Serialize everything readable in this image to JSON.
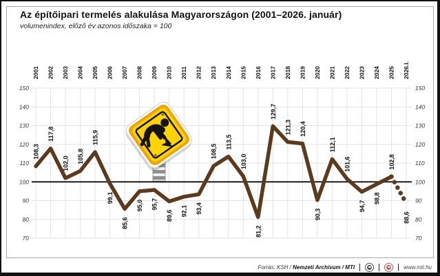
{
  "title": "Az építőipari termelés alakulása Magyarországon (2001–2026. január)",
  "subtitle": "volumenindex, előző év azonos időszaka = 100",
  "footer": {
    "source_prefix": "Forrás: KSH / ",
    "source_bold": "Nemzeti Archívum / MTI",
    "separator": "|",
    "website": "www.mti.hu",
    "logos": [
      "mtva-logo",
      "mti-logo"
    ]
  },
  "chart_data": {
    "type": "line",
    "title": "Az építőipari termelés alakulása Magyarországon (2001–2026. január)",
    "subtitle": "volumenindex, előző év azonos időszaka = 100",
    "categories": [
      "2001",
      "2002",
      "2003",
      "2004",
      "2005",
      "2006",
      "2007",
      "2008",
      "2009",
      "2010",
      "2011",
      "2012",
      "2013",
      "2014",
      "2015",
      "2016",
      "2017",
      "2018",
      "2019",
      "2020",
      "2021",
      "2022",
      "2023",
      "2024",
      "2025",
      "2026.I."
    ],
    "values": [
      108.3,
      117.8,
      102.0,
      105.8,
      115.9,
      99.1,
      85.6,
      95.0,
      95.7,
      89.6,
      92.1,
      93.4,
      108.5,
      113.5,
      103.0,
      81.2,
      129.7,
      121.3,
      120.4,
      90.3,
      112.1,
      101.6,
      94.7,
      98.8,
      102.8,
      88.6
    ],
    "value_labels": [
      "108,3",
      "117,8",
      "102,0",
      "105,8",
      "115,9",
      "99,1",
      "85,6",
      "95,0",
      "95,7",
      "89,6",
      "92,1",
      "93,4",
      "108,5",
      "113,5",
      "103,0",
      "81,2",
      "129,7",
      "121,3",
      "120,4",
      "90,3",
      "112,1",
      "101,6",
      "94,7",
      "98,8",
      "102,8",
      "88,6"
    ],
    "label_side": [
      "above",
      "above",
      "above",
      "above",
      "above",
      "below",
      "below",
      "below",
      "below",
      "below",
      "below",
      "below",
      "above",
      "above",
      "above",
      "below",
      "above",
      "above",
      "above",
      "below",
      "above",
      "above",
      "below",
      "below",
      "above",
      "below"
    ],
    "ylim": [
      70,
      150
    ],
    "yticks": [
      70,
      80,
      90,
      100,
      110,
      120,
      130,
      140,
      150
    ],
    "baseline": 100,
    "last_segment_dashed": true,
    "grid": true,
    "legend": "none",
    "colors": {
      "line": "#5b3a1d",
      "baseline": "#1a1a1a",
      "grid": "#e3e3e3",
      "tick_label": "#333333",
      "year_label": "#111111",
      "value_label": "#111111",
      "sign_yellow": "#ffd400",
      "sign_orange": "#f0a400"
    }
  }
}
